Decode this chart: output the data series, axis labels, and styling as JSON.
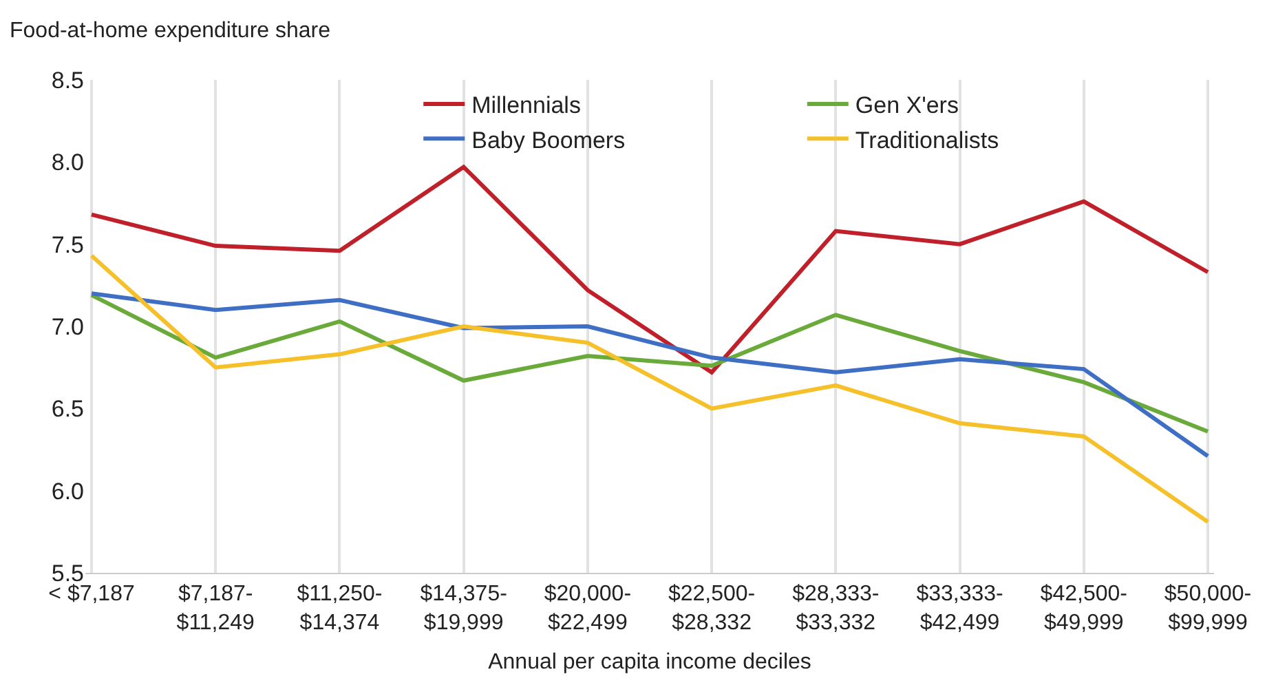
{
  "chart_data": {
    "type": "line",
    "ylabel": "Food-at-home expenditure share",
    "xlabel": "Annual per capita income deciles",
    "categories": [
      "< $7,187",
      "$7,187-\n$11,249",
      "$11,250-\n$14,374",
      "$14,375-\n$19,999",
      "$20,000-\n$22,499",
      "$22,500-\n$28,332",
      "$28,333-\n$33,332",
      "$33,333-\n$42,499",
      "$42,500-\n$49,999",
      "$50,000-\n$99,999"
    ],
    "series": [
      {
        "name": "Millennials",
        "color": "#c0202a",
        "values": [
          7.68,
          7.49,
          7.46,
          7.97,
          7.22,
          6.72,
          7.58,
          7.5,
          7.76,
          7.33
        ]
      },
      {
        "name": "Gen X'ers",
        "color": "#6aaa3a",
        "values": [
          7.19,
          6.81,
          7.03,
          6.67,
          6.82,
          6.76,
          7.07,
          6.85,
          6.66,
          6.36
        ]
      },
      {
        "name": "Baby Boomers",
        "color": "#3f6fc4",
        "values": [
          7.2,
          7.1,
          7.16,
          6.99,
          7.0,
          6.81,
          6.72,
          6.8,
          6.74,
          6.21
        ]
      },
      {
        "name": "Traditionalists",
        "color": "#f5c02a",
        "values": [
          7.43,
          6.75,
          6.83,
          7.0,
          6.9,
          6.5,
          6.64,
          6.41,
          6.33,
          5.81
        ]
      }
    ],
    "ylim": [
      5.5,
      8.5
    ],
    "yticks": [
      5.5,
      {
        "value": 6,
        "label": "6.0"
      },
      6.5,
      {
        "value": 7,
        "label": "7.0"
      },
      7.5,
      {
        "value": 8,
        "label": "8.0"
      },
      8.5
    ],
    "grid": "x",
    "legend": "top right",
    "marker": "none",
    "line_style": "solid"
  }
}
